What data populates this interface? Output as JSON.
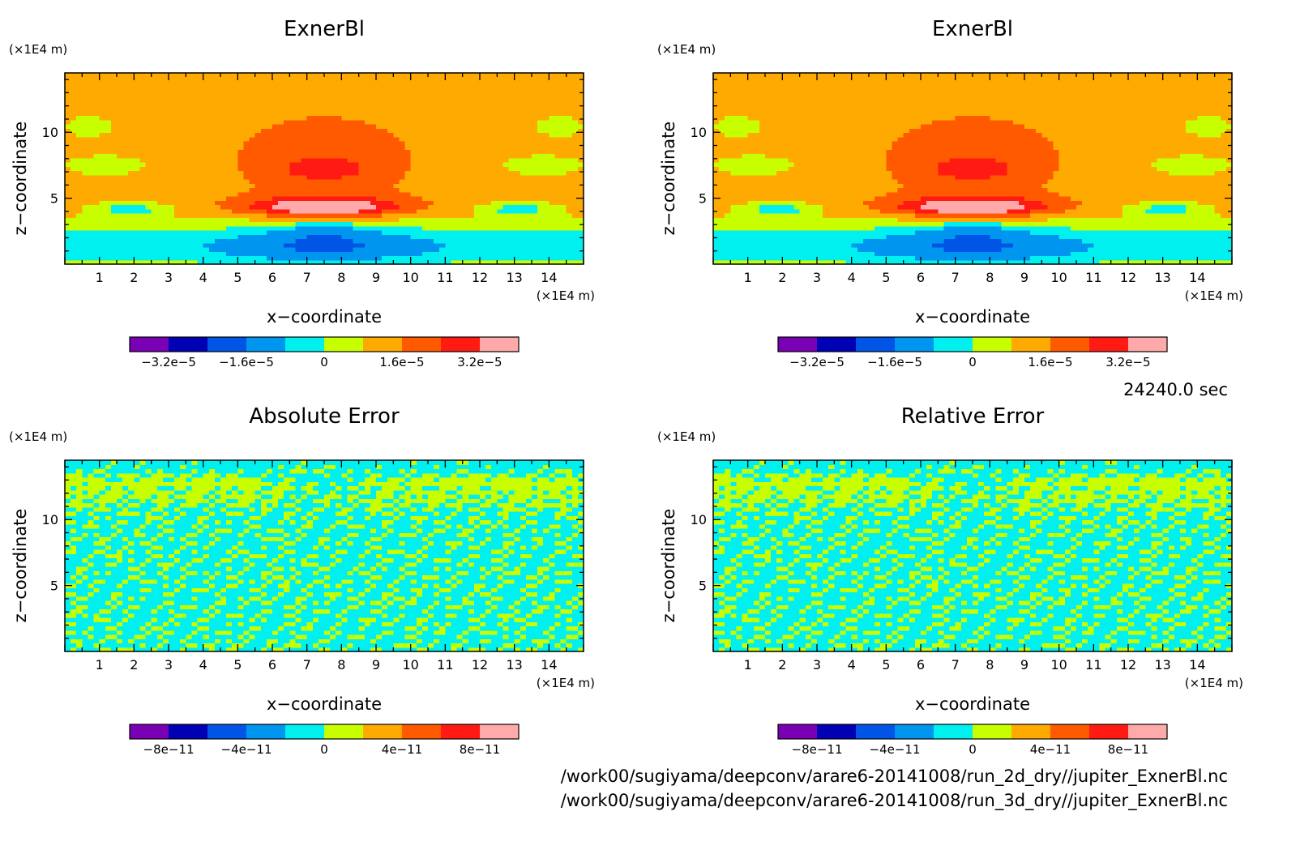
{
  "chart_data": [
    {
      "type": "heatmap",
      "title": "ExnerBl",
      "xlabel": "x-coordinate",
      "ylabel": "z-coordinate",
      "x_unit": "(x1E4 m)",
      "y_unit": "(x1E4 m)",
      "xlim": [
        0,
        15
      ],
      "ylim": [
        0,
        14.5
      ],
      "xticks": [
        1,
        2,
        3,
        4,
        5,
        6,
        7,
        8,
        9,
        10,
        11,
        12,
        13,
        14
      ],
      "yticks": [
        5,
        10
      ],
      "levels": [
        -4e-05,
        -3.2e-05,
        -2.4e-05,
        -1.6e-05,
        -8e-06,
        0,
        8e-06,
        1.6e-05,
        2.4e-05,
        3.2e-05,
        4e-05
      ],
      "colorbar_labels": [
        {
          "value": -3.2e-05,
          "text": "-3.2e-5"
        },
        {
          "value": -1.6e-05,
          "text": "-1.6e-5"
        },
        {
          "value": 0,
          "text": "0"
        },
        {
          "value": 1.6e-05,
          "text": "1.6e-5"
        },
        {
          "value": 3.2e-05,
          "text": "3.2e-5"
        }
      ],
      "field": "exner"
    },
    {
      "type": "heatmap",
      "title": "ExnerBl",
      "xlabel": "x-coordinate",
      "ylabel": "z-coordinate",
      "x_unit": "(x1E4 m)",
      "y_unit": "(x1E4 m)",
      "xlim": [
        0,
        15
      ],
      "ylim": [
        0,
        14.5
      ],
      "xticks": [
        1,
        2,
        3,
        4,
        5,
        6,
        7,
        8,
        9,
        10,
        11,
        12,
        13,
        14
      ],
      "yticks": [
        5,
        10
      ],
      "levels": [
        -4e-05,
        -3.2e-05,
        -2.4e-05,
        -1.6e-05,
        -8e-06,
        0,
        8e-06,
        1.6e-05,
        2.4e-05,
        3.2e-05,
        4e-05
      ],
      "colorbar_labels": [
        {
          "value": -3.2e-05,
          "text": "-3.2e-5"
        },
        {
          "value": -1.6e-05,
          "text": "-1.6e-5"
        },
        {
          "value": 0,
          "text": "0"
        },
        {
          "value": 1.6e-05,
          "text": "1.6e-5"
        },
        {
          "value": 3.2e-05,
          "text": "3.2e-5"
        }
      ],
      "field": "exner"
    },
    {
      "type": "heatmap",
      "title": "Absolute Error",
      "xlabel": "x-coordinate",
      "ylabel": "z-coordinate",
      "x_unit": "(x1E4 m)",
      "y_unit": "(x1E4 m)",
      "xlim": [
        0,
        15
      ],
      "ylim": [
        0,
        14.5
      ],
      "xticks": [
        1,
        2,
        3,
        4,
        5,
        6,
        7,
        8,
        9,
        10,
        11,
        12,
        13,
        14
      ],
      "yticks": [
        5,
        10
      ],
      "levels": [
        -1e-10,
        -8e-11,
        -6e-11,
        -4e-11,
        -2e-11,
        0,
        2e-11,
        4e-11,
        6e-11,
        8e-11,
        1e-10
      ],
      "colorbar_labels": [
        {
          "value": -8e-11,
          "text": "-8e-11"
        },
        {
          "value": -4e-11,
          "text": "-4e-11"
        },
        {
          "value": 0,
          "text": "0"
        },
        {
          "value": 4e-11,
          "text": "4e-11"
        },
        {
          "value": 8e-11,
          "text": "8e-11"
        }
      ],
      "field": "error"
    },
    {
      "type": "heatmap",
      "title": "Relative Error",
      "xlabel": "x-coordinate",
      "ylabel": "z-coordinate",
      "x_unit": "(x1E4 m)",
      "y_unit": "(x1E4 m)",
      "xlim": [
        0,
        15
      ],
      "ylim": [
        0,
        14.5
      ],
      "xticks": [
        1,
        2,
        3,
        4,
        5,
        6,
        7,
        8,
        9,
        10,
        11,
        12,
        13,
        14
      ],
      "yticks": [
        5,
        10
      ],
      "levels": [
        -1e-10,
        -8e-11,
        -6e-11,
        -4e-11,
        -2e-11,
        0,
        2e-11,
        4e-11,
        6e-11,
        8e-11,
        1e-10
      ],
      "colorbar_labels": [
        {
          "value": -8e-11,
          "text": "-8e-11"
        },
        {
          "value": -4e-11,
          "text": "-4e-11"
        },
        {
          "value": 0,
          "text": "0"
        },
        {
          "value": 4e-11,
          "text": "4e-11"
        },
        {
          "value": 8e-11,
          "text": "8e-11"
        }
      ],
      "field": "error"
    }
  ],
  "palette": [
    "#7a00b4",
    "#0000b4",
    "#0055e6",
    "#0096f0",
    "#00f0f0",
    "#c8ff00",
    "#ffaa00",
    "#ff5a00",
    "#ff1a14",
    "#ffaaaa"
  ],
  "info": {
    "time": "24240.0 sec",
    "file1": "/work00/sugiyama/deepconv/arare6-20141008/run_2d_dry//jupiter_ExnerBl.nc",
    "file2": "/work00/sugiyama/deepconv/arare6-20141008/run_3d_dry//jupiter_ExnerBl.nc"
  }
}
